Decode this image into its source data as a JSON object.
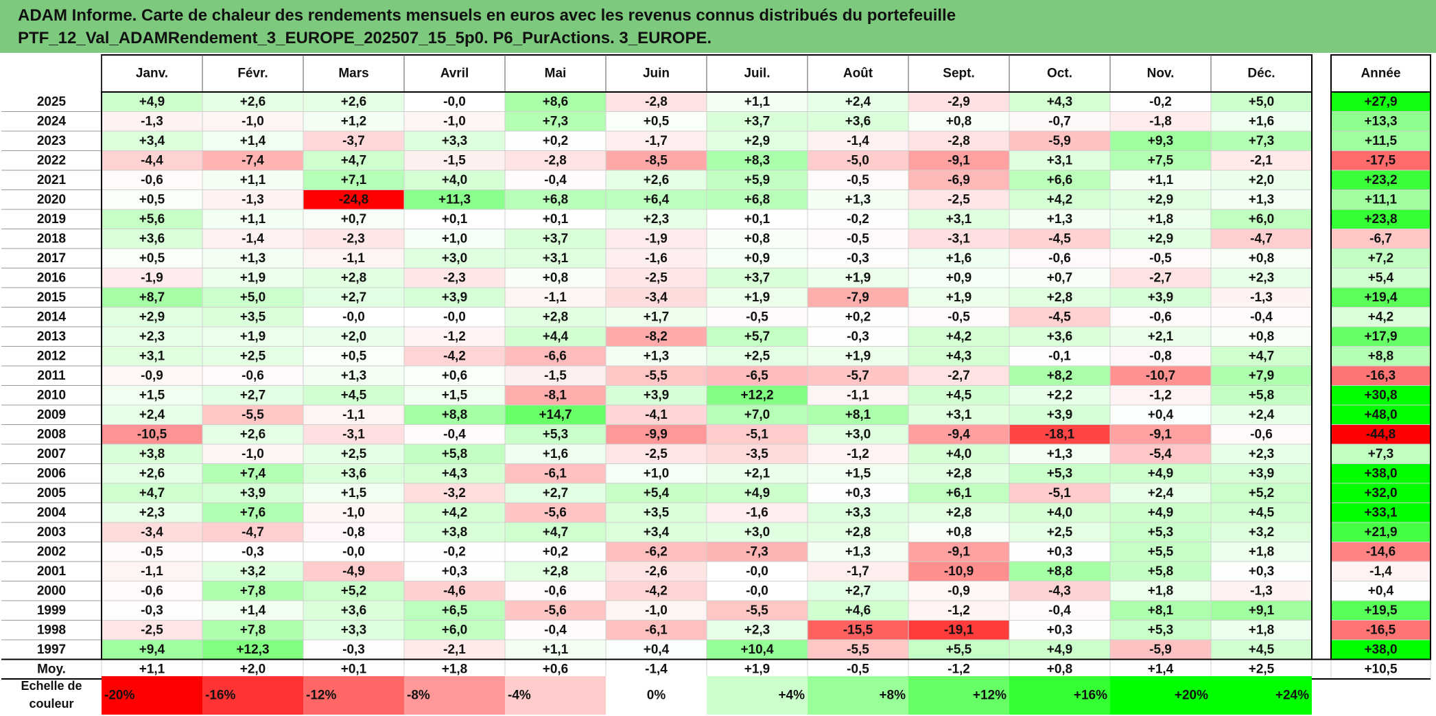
{
  "title": {
    "line1": "ADAM Informe. Carte de chaleur des rendements mensuels en euros avec les revenus connus distribués du portefeuille",
    "line2": "PTF_12_Val_ADAMRendement_3_EUROPE_202507_15_5p0. P6_PurActions. 3_EUROPE."
  },
  "chart_data": {
    "type": "heatmap",
    "columns": [
      "Janv.",
      "Févr.",
      "Mars",
      "Avril",
      "Mai",
      "Juin",
      "Juil.",
      "Août",
      "Sept.",
      "Oct.",
      "Nov.",
      "Déc."
    ],
    "year_column": "Année",
    "rows": [
      {
        "year": "2025",
        "values": [
          "+4,9",
          "+2,6",
          "+2,6",
          "-0,0",
          "+8,6",
          "-2,8",
          "+1,1",
          "+2,4",
          "-2,9",
          "+4,3",
          "-0,2",
          "+5,0"
        ],
        "year_total": "+27,9"
      },
      {
        "year": "2024",
        "values": [
          "-1,3",
          "-1,0",
          "+1,2",
          "-1,0",
          "+7,3",
          "+0,5",
          "+3,7",
          "+3,6",
          "+0,8",
          "-0,7",
          "-1,8",
          "+1,6"
        ],
        "year_total": "+13,3"
      },
      {
        "year": "2023",
        "values": [
          "+3,4",
          "+1,4",
          "-3,7",
          "+3,3",
          "+0,2",
          "-1,7",
          "+2,9",
          "-1,4",
          "-2,8",
          "-5,9",
          "+9,3",
          "+7,3"
        ],
        "year_total": "+11,5"
      },
      {
        "year": "2022",
        "values": [
          "-4,4",
          "-7,4",
          "+4,7",
          "-1,5",
          "-2,8",
          "-8,5",
          "+8,3",
          "-5,0",
          "-9,1",
          "+3,1",
          "+7,5",
          "-2,1"
        ],
        "year_total": "-17,5"
      },
      {
        "year": "2021",
        "values": [
          "-0,6",
          "+1,1",
          "+7,1",
          "+4,0",
          "-0,4",
          "+2,6",
          "+5,9",
          "-0,5",
          "-6,9",
          "+6,6",
          "+1,1",
          "+2,0"
        ],
        "year_total": "+23,2"
      },
      {
        "year": "2020",
        "values": [
          "+0,5",
          "-1,3",
          "-24,8",
          "+11,3",
          "+6,8",
          "+6,4",
          "+6,8",
          "+1,3",
          "-2,5",
          "+4,2",
          "+2,9",
          "+1,3"
        ],
        "year_total": "+11,1"
      },
      {
        "year": "2019",
        "values": [
          "+5,6",
          "+1,1",
          "+0,7",
          "+0,1",
          "+0,1",
          "+2,3",
          "+0,1",
          "-0,2",
          "+3,1",
          "+1,3",
          "+1,8",
          "+6,0"
        ],
        "year_total": "+23,8"
      },
      {
        "year": "2018",
        "values": [
          "+3,6",
          "-1,4",
          "-2,3",
          "+1,0",
          "+3,7",
          "-1,9",
          "+0,8",
          "-0,5",
          "-3,1",
          "-4,5",
          "+2,9",
          "-4,7"
        ],
        "year_total": "-6,7"
      },
      {
        "year": "2017",
        "values": [
          "+0,5",
          "+1,3",
          "-1,1",
          "+3,0",
          "+3,1",
          "-1,6",
          "+0,9",
          "-0,3",
          "+1,6",
          "-0,6",
          "-0,5",
          "+0,8"
        ],
        "year_total": "+7,2"
      },
      {
        "year": "2016",
        "values": [
          "-1,9",
          "+1,9",
          "+2,8",
          "-2,3",
          "+0,8",
          "-2,5",
          "+3,7",
          "+1,9",
          "+0,9",
          "+0,7",
          "-2,7",
          "+2,3"
        ],
        "year_total": "+5,4"
      },
      {
        "year": "2015",
        "values": [
          "+8,7",
          "+5,0",
          "+2,7",
          "+3,9",
          "-1,1",
          "-3,4",
          "+1,9",
          "-7,9",
          "+1,9",
          "+2,8",
          "+3,9",
          "-1,3"
        ],
        "year_total": "+19,4"
      },
      {
        "year": "2014",
        "values": [
          "+2,9",
          "+3,5",
          "-0,0",
          "-0,0",
          "+2,8",
          "+1,7",
          "-0,5",
          "+0,2",
          "-0,5",
          "-4,5",
          "-0,6",
          "-0,4"
        ],
        "year_total": "+4,2"
      },
      {
        "year": "2013",
        "values": [
          "+2,3",
          "+1,9",
          "+2,0",
          "-1,2",
          "+4,4",
          "-8,2",
          "+5,7",
          "-0,3",
          "+4,2",
          "+3,6",
          "+2,1",
          "+0,8"
        ],
        "year_total": "+17,9"
      },
      {
        "year": "2012",
        "values": [
          "+3,1",
          "+2,5",
          "+0,5",
          "-4,2",
          "-6,6",
          "+1,3",
          "+2,5",
          "+1,9",
          "+4,3",
          "-0,1",
          "-0,8",
          "+4,7"
        ],
        "year_total": "+8,8"
      },
      {
        "year": "2011",
        "values": [
          "-0,9",
          "-0,6",
          "+1,3",
          "+0,6",
          "-1,5",
          "-5,5",
          "-6,5",
          "-5,7",
          "-2,7",
          "+8,2",
          "-10,7",
          "+7,9"
        ],
        "year_total": "-16,3"
      },
      {
        "year": "2010",
        "values": [
          "+1,5",
          "+2,7",
          "+4,5",
          "+1,5",
          "-8,1",
          "+3,9",
          "+12,2",
          "-1,1",
          "+4,5",
          "+2,2",
          "-1,2",
          "+5,8"
        ],
        "year_total": "+30,8"
      },
      {
        "year": "2009",
        "values": [
          "+2,4",
          "-5,5",
          "-1,1",
          "+8,8",
          "+14,7",
          "-4,1",
          "+7,0",
          "+8,1",
          "+3,1",
          "+3,9",
          "+0,4",
          "+2,4"
        ],
        "year_total": "+48,0"
      },
      {
        "year": "2008",
        "values": [
          "-10,5",
          "+2,6",
          "-3,1",
          "-0,4",
          "+5,3",
          "-9,9",
          "-5,1",
          "+3,0",
          "-9,4",
          "-18,1",
          "-9,1",
          "-0,6"
        ],
        "year_total": "-44,8"
      },
      {
        "year": "2007",
        "values": [
          "+3,8",
          "-1,0",
          "+2,5",
          "+5,8",
          "+1,6",
          "-2,5",
          "-3,5",
          "-1,2",
          "+4,0",
          "+1,3",
          "-5,4",
          "+2,3"
        ],
        "year_total": "+7,3"
      },
      {
        "year": "2006",
        "values": [
          "+2,6",
          "+7,4",
          "+3,6",
          "+4,3",
          "-6,1",
          "+1,0",
          "+2,1",
          "+1,5",
          "+2,8",
          "+5,3",
          "+4,9",
          "+3,9"
        ],
        "year_total": "+38,0"
      },
      {
        "year": "2005",
        "values": [
          "+4,7",
          "+3,9",
          "+1,5",
          "-3,2",
          "+2,7",
          "+5,4",
          "+4,9",
          "+0,3",
          "+6,1",
          "-5,1",
          "+2,4",
          "+5,2"
        ],
        "year_total": "+32,0"
      },
      {
        "year": "2004",
        "values": [
          "+2,3",
          "+7,6",
          "-1,0",
          "+4,2",
          "-5,6",
          "+3,5",
          "-1,6",
          "+3,3",
          "+2,8",
          "+4,0",
          "+4,9",
          "+4,5"
        ],
        "year_total": "+33,1"
      },
      {
        "year": "2003",
        "values": [
          "-3,4",
          "-4,7",
          "-0,8",
          "+3,8",
          "+4,7",
          "+3,4",
          "+3,0",
          "+2,8",
          "+0,8",
          "+2,5",
          "+5,3",
          "+3,2"
        ],
        "year_total": "+21,9"
      },
      {
        "year": "2002",
        "values": [
          "-0,5",
          "-0,3",
          "-0,0",
          "-0,2",
          "+0,2",
          "-6,2",
          "-7,3",
          "+1,3",
          "-9,1",
          "+0,3",
          "+5,5",
          "+1,8"
        ],
        "year_total": "-14,6"
      },
      {
        "year": "2001",
        "values": [
          "-1,1",
          "+3,2",
          "-4,9",
          "+0,3",
          "+2,8",
          "-2,6",
          "-0,0",
          "-1,7",
          "-10,9",
          "+8,8",
          "+5,8",
          "+0,3"
        ],
        "year_total": "-1,4"
      },
      {
        "year": "2000",
        "values": [
          "-0,6",
          "+7,8",
          "+5,2",
          "-4,6",
          "-0,6",
          "-4,2",
          "-0,0",
          "+2,7",
          "-0,9",
          "-4,3",
          "+1,8",
          "-1,3"
        ],
        "year_total": "+0,4"
      },
      {
        "year": "1999",
        "values": [
          "-0,3",
          "+1,4",
          "+3,6",
          "+6,5",
          "-5,6",
          "-1,0",
          "-5,5",
          "+4,6",
          "-1,2",
          "-0,4",
          "+8,1",
          "+9,1"
        ],
        "year_total": "+19,5"
      },
      {
        "year": "1998",
        "values": [
          "-2,5",
          "+7,8",
          "+3,3",
          "+6,0",
          "-0,4",
          "-6,1",
          "+2,3",
          "-15,5",
          "-19,1",
          "+0,3",
          "+5,3",
          "+1,8"
        ],
        "year_total": "-16,5"
      },
      {
        "year": "1997",
        "values": [
          "+9,4",
          "+12,3",
          "-0,3",
          "-2,1",
          "+1,1",
          "+0,4",
          "+10,4",
          "-5,5",
          "+5,5",
          "+4,9",
          "-5,9",
          "+4,5"
        ],
        "year_total": "+38,0"
      }
    ],
    "average_row": {
      "label": "Moy.",
      "values": [
        "+1,1",
        "+2,0",
        "+0,1",
        "+1,8",
        "+0,6",
        "-1,4",
        "+1,9",
        "-0,5",
        "-1,2",
        "+0,8",
        "+1,4",
        "+2,5"
      ],
      "year_total": "+10,5"
    },
    "color_scale": {
      "label_line1": "Echelle de",
      "label_line2": "couleur",
      "stops": [
        {
          "label": "-20%",
          "value": -20
        },
        {
          "label": "-16%",
          "value": -16
        },
        {
          "label": "-12%",
          "value": -12
        },
        {
          "label": "-8%",
          "value": -8
        },
        {
          "label": "-4%",
          "value": -4
        },
        {
          "label": "0%",
          "value": 0
        },
        {
          "label": "+4%",
          "value": 4
        },
        {
          "label": "+8%",
          "value": 8
        },
        {
          "label": "+12%",
          "value": 12
        },
        {
          "label": "+16%",
          "value": 16
        },
        {
          "label": "+20%",
          "value": 20
        },
        {
          "label": "+24%",
          "value": 24
        }
      ]
    },
    "colors": {
      "negative": "#ff0000",
      "positive": "#00ff00",
      "neutral": "#ffffff",
      "title_background": "#7dc97d"
    }
  }
}
